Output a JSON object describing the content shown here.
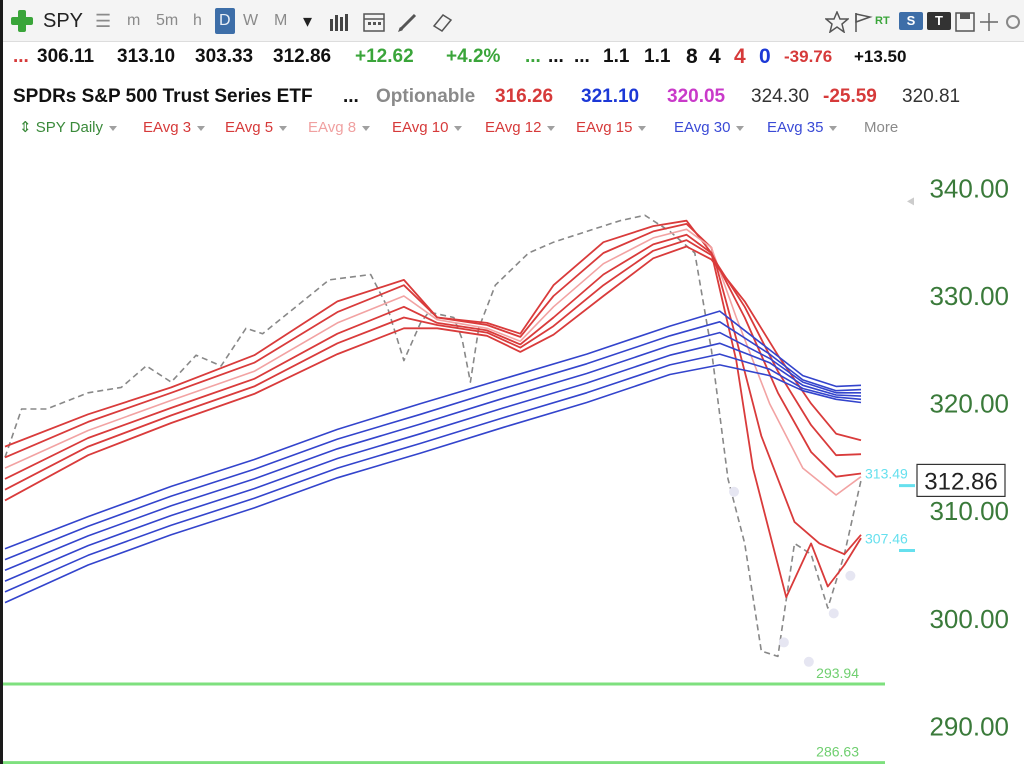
{
  "toolbar": {
    "symbol": "SPY",
    "list_glyph": "☰",
    "timeframes": [
      "m",
      "5m",
      "h",
      "D",
      "W",
      "M"
    ],
    "active_timeframe": "D",
    "dropdown_glyph": "▾",
    "right_rt": "RT",
    "right_s": "S",
    "right_t": "T"
  },
  "quote_line1": [
    {
      "text": "...",
      "color": "#d63a3a"
    },
    {
      "text": "306.11",
      "color": "#111111"
    },
    {
      "text": "313.10",
      "color": "#111111"
    },
    {
      "text": "303.33",
      "color": "#111111"
    },
    {
      "text": "312.86",
      "color": "#111111"
    },
    {
      "text": "+12.62",
      "color": "#3aa53a"
    },
    {
      "text": "+4.2%",
      "color": "#3aa53a"
    },
    {
      "text": "...",
      "color": "#3aa53a"
    },
    {
      "text": "...",
      "color": "#111111"
    },
    {
      "text": "...",
      "color": "#111111"
    },
    {
      "text": "1.1",
      "color": "#111111"
    },
    {
      "text": "1.1",
      "color": "#111111"
    },
    {
      "text": "8",
      "color": "#111111"
    },
    {
      "text": "4",
      "color": "#111111"
    },
    {
      "text": "4",
      "color": "#d63a3a"
    },
    {
      "text": "0",
      "color": "#1c38d6"
    },
    {
      "text": "-39.76",
      "color": "#d63a3a"
    },
    {
      "text": "+13.50",
      "color": "#111111"
    }
  ],
  "quote_line2": [
    {
      "text": "SPDRs S&P 500 Trust Series ETF",
      "color": "#111111"
    },
    {
      "text": "...",
      "color": "#111111"
    },
    {
      "text": "Optionable",
      "color": "#8a8a8a"
    },
    {
      "text": "316.26",
      "color": "#d63a3a"
    },
    {
      "text": "321.10",
      "color": "#1c38d6"
    },
    {
      "text": "320.05",
      "color": "#c93ac9"
    },
    {
      "text": "324.30",
      "color": "#333333"
    },
    {
      "text": "-25.59",
      "color": "#d63a3a"
    },
    {
      "text": "320.81",
      "color": "#333333"
    }
  ],
  "legend": [
    {
      "label": "SPY Daily",
      "color": "#3a8a3a"
    },
    {
      "label": "EAvg 3",
      "color": "#d63a3a"
    },
    {
      "label": "EAvg 5",
      "color": "#d63a3a"
    },
    {
      "label": "EAvg 8",
      "color": "#f0a0a0"
    },
    {
      "label": "EAvg 10",
      "color": "#d63a3a"
    },
    {
      "label": "EAvg 12",
      "color": "#d63a3a"
    },
    {
      "label": "EAvg 15",
      "color": "#d63a3a"
    },
    {
      "label": "EAvg 30",
      "color": "#3a4ad6"
    },
    {
      "label": "EAvg 35",
      "color": "#3a4ad6"
    },
    {
      "label": "More",
      "color": "#8a8a8a"
    }
  ],
  "chart_data": {
    "type": "line",
    "ylim": [
      286.5,
      344.5
    ],
    "y_ticks": [
      340,
      330,
      320,
      310,
      300,
      290
    ],
    "y_tick_labels": [
      "340.00",
      "330.00",
      "320.00",
      "310.00",
      "300.00",
      "290.00"
    ],
    "current_price": {
      "value": 312.86,
      "label": "312.86"
    },
    "level_lines": [
      {
        "value": 293.94,
        "label": "293.94",
        "color": "#7ee07e"
      },
      {
        "value": 286.63,
        "label": "286.63",
        "color": "#7ee07e"
      }
    ],
    "level_labels": [
      {
        "value": 313.49,
        "label": "313.49",
        "color": "#66e0ee"
      },
      {
        "value": 307.46,
        "label": "307.46",
        "color": "#66e0ee"
      }
    ],
    "bars": 59,
    "series": [
      {
        "id": "close",
        "color": "#888888",
        "dashed": true,
        "width": 1.6,
        "anchors": [
          [
            0,
            315
          ],
          [
            2,
            319.5
          ],
          [
            5,
            319.5
          ],
          [
            10,
            321
          ],
          [
            14,
            321.5
          ],
          [
            17,
            323.5
          ],
          [
            20,
            322
          ],
          [
            23,
            324.5
          ],
          [
            26,
            323.5
          ],
          [
            29,
            327
          ],
          [
            31,
            326.5
          ],
          [
            35,
            329
          ],
          [
            39,
            331.5
          ],
          [
            44,
            332
          ],
          [
            46,
            329
          ],
          [
            48,
            324
          ],
          [
            50,
            327.5
          ],
          [
            51,
            328.5
          ],
          [
            54,
            328
          ],
          [
            55,
            326
          ],
          [
            56,
            322
          ],
          [
            57,
            327
          ],
          [
            59,
            331
          ],
          [
            63,
            334
          ],
          [
            66,
            335
          ],
          [
            70,
            336
          ],
          [
            74,
            337
          ],
          [
            77,
            337.5
          ],
          [
            80,
            336
          ],
          [
            83,
            334
          ],
          [
            85,
            325
          ],
          [
            87,
            313
          ],
          [
            89,
            307
          ],
          [
            91,
            297
          ],
          [
            93,
            296.5
          ],
          [
            95,
            307
          ],
          [
            97,
            306
          ],
          [
            99,
            301
          ],
          [
            101,
            306
          ],
          [
            103,
            312.86
          ]
        ]
      },
      {
        "id": "eavg3",
        "color": "#d93b3b",
        "width": 1.8,
        "anchors": [
          [
            0,
            316
          ],
          [
            10,
            319
          ],
          [
            20,
            321.5
          ],
          [
            30,
            324.5
          ],
          [
            40,
            329.5
          ],
          [
            48,
            331.5
          ],
          [
            52,
            328
          ],
          [
            58,
            327.5
          ],
          [
            62,
            326.5
          ],
          [
            66,
            331
          ],
          [
            72,
            335
          ],
          [
            78,
            336.5
          ],
          [
            82,
            337
          ],
          [
            85,
            334
          ],
          [
            88,
            324
          ],
          [
            90,
            314
          ],
          [
            94,
            302
          ],
          [
            97,
            307
          ],
          [
            99,
            303
          ],
          [
            101,
            305
          ],
          [
            103,
            307.5
          ]
        ]
      },
      {
        "id": "eavg5",
        "color": "#d93b3b",
        "width": 1.8,
        "anchors": [
          [
            0,
            315
          ],
          [
            10,
            318.3
          ],
          [
            20,
            321
          ],
          [
            30,
            323.8
          ],
          [
            40,
            328.5
          ],
          [
            48,
            331
          ],
          [
            52,
            328
          ],
          [
            58,
            327.3
          ],
          [
            62,
            326.2
          ],
          [
            66,
            330
          ],
          [
            72,
            334
          ],
          [
            78,
            336
          ],
          [
            82,
            336.7
          ],
          [
            85,
            334.5
          ],
          [
            88,
            326
          ],
          [
            91,
            317
          ],
          [
            95,
            309
          ],
          [
            98,
            307
          ],
          [
            101,
            306
          ],
          [
            103,
            307.8
          ]
        ]
      },
      {
        "id": "eavg8",
        "color": "#f2a3a3",
        "width": 1.6,
        "anchors": [
          [
            0,
            314
          ],
          [
            10,
            317.5
          ],
          [
            20,
            320.3
          ],
          [
            30,
            323
          ],
          [
            40,
            327.5
          ],
          [
            48,
            330
          ],
          [
            52,
            327.8
          ],
          [
            58,
            327
          ],
          [
            62,
            325.8
          ],
          [
            66,
            329
          ],
          [
            72,
            333
          ],
          [
            78,
            335.4
          ],
          [
            82,
            336.2
          ],
          [
            85,
            334.5
          ],
          [
            88,
            328
          ],
          [
            92,
            320
          ],
          [
            96,
            314
          ],
          [
            100,
            311.5
          ],
          [
            103,
            313.2
          ]
        ]
      },
      {
        "id": "eavg10",
        "color": "#d93b3b",
        "width": 1.8,
        "anchors": [
          [
            0,
            313
          ],
          [
            10,
            316.8
          ],
          [
            20,
            319.6
          ],
          [
            30,
            322.3
          ],
          [
            40,
            326.5
          ],
          [
            48,
            329
          ],
          [
            52,
            327.5
          ],
          [
            58,
            326.8
          ],
          [
            62,
            325.5
          ],
          [
            66,
            328
          ],
          [
            72,
            332
          ],
          [
            78,
            334.8
          ],
          [
            82,
            335.7
          ],
          [
            85,
            334
          ],
          [
            89,
            328
          ],
          [
            93,
            321
          ],
          [
            97,
            315.5
          ],
          [
            100,
            313.2
          ],
          [
            103,
            313.5
          ]
        ]
      },
      {
        "id": "eavg12",
        "color": "#d93b3b",
        "width": 1.8,
        "anchors": [
          [
            0,
            312
          ],
          [
            10,
            316
          ],
          [
            20,
            318.9
          ],
          [
            30,
            321.6
          ],
          [
            40,
            325.6
          ],
          [
            48,
            328
          ],
          [
            52,
            327.3
          ],
          [
            58,
            326.6
          ],
          [
            62,
            325.2
          ],
          [
            66,
            327.2
          ],
          [
            72,
            331
          ],
          [
            78,
            334.2
          ],
          [
            82,
            335.2
          ],
          [
            85,
            333.8
          ],
          [
            89,
            329
          ],
          [
            93,
            323
          ],
          [
            97,
            318
          ],
          [
            100,
            315.2
          ],
          [
            103,
            315.3
          ]
        ]
      },
      {
        "id": "eavg15",
        "color": "#d93b3b",
        "width": 1.8,
        "anchors": [
          [
            0,
            311
          ],
          [
            10,
            315.2
          ],
          [
            20,
            318.2
          ],
          [
            30,
            320.9
          ],
          [
            40,
            324.6
          ],
          [
            48,
            327
          ],
          [
            52,
            327
          ],
          [
            58,
            326.3
          ],
          [
            62,
            324.8
          ],
          [
            66,
            326.4
          ],
          [
            72,
            330
          ],
          [
            78,
            333.5
          ],
          [
            82,
            334.6
          ],
          [
            85,
            333.4
          ],
          [
            89,
            329.5
          ],
          [
            93,
            324.5
          ],
          [
            97,
            320
          ],
          [
            100,
            317.2
          ],
          [
            103,
            316.6
          ]
        ]
      },
      {
        "id": "eavg30_a",
        "color": "#3344cc",
        "width": 1.6,
        "anchors": [
          [
            0,
            306.5
          ],
          [
            10,
            309.5
          ],
          [
            20,
            312.3
          ],
          [
            30,
            314.8
          ],
          [
            40,
            317.6
          ],
          [
            50,
            320
          ],
          [
            60,
            322.3
          ],
          [
            70,
            324.6
          ],
          [
            80,
            327.2
          ],
          [
            86,
            328.6
          ],
          [
            92,
            325
          ],
          [
            96,
            322.6
          ],
          [
            100,
            321.6
          ],
          [
            103,
            321.7
          ]
        ]
      },
      {
        "id": "eavg30_b",
        "color": "#3344cc",
        "width": 1.6,
        "anchors": [
          [
            0,
            305.5
          ],
          [
            10,
            308.6
          ],
          [
            20,
            311.4
          ],
          [
            30,
            313.9
          ],
          [
            40,
            316.7
          ],
          [
            50,
            319
          ],
          [
            60,
            321.4
          ],
          [
            70,
            323.7
          ],
          [
            80,
            326.3
          ],
          [
            86,
            327.6
          ],
          [
            92,
            324.6
          ],
          [
            96,
            322.2
          ],
          [
            100,
            321.2
          ],
          [
            103,
            321.3
          ]
        ]
      },
      {
        "id": "eavg30_c",
        "color": "#3344cc",
        "width": 1.6,
        "anchors": [
          [
            0,
            304.5
          ],
          [
            10,
            307.7
          ],
          [
            20,
            310.5
          ],
          [
            30,
            313
          ],
          [
            40,
            315.8
          ],
          [
            50,
            318.1
          ],
          [
            60,
            320.5
          ],
          [
            70,
            322.8
          ],
          [
            80,
            325.4
          ],
          [
            86,
            326.6
          ],
          [
            92,
            324.2
          ],
          [
            96,
            322
          ],
          [
            100,
            321
          ],
          [
            103,
            321
          ]
        ]
      },
      {
        "id": "eavg30_d",
        "color": "#3344cc",
        "width": 1.6,
        "anchors": [
          [
            0,
            303.5
          ],
          [
            10,
            306.8
          ],
          [
            20,
            309.6
          ],
          [
            30,
            312.1
          ],
          [
            40,
            314.9
          ],
          [
            50,
            317.2
          ],
          [
            60,
            319.6
          ],
          [
            70,
            321.9
          ],
          [
            80,
            324.5
          ],
          [
            86,
            325.6
          ],
          [
            92,
            323.8
          ],
          [
            96,
            321.7
          ],
          [
            100,
            320.8
          ],
          [
            103,
            320.7
          ]
        ]
      },
      {
        "id": "eavg30_e",
        "color": "#3344cc",
        "width": 1.6,
        "anchors": [
          [
            0,
            302.5
          ],
          [
            10,
            305.9
          ],
          [
            20,
            308.7
          ],
          [
            30,
            311.2
          ],
          [
            40,
            314
          ],
          [
            50,
            316.3
          ],
          [
            60,
            318.7
          ],
          [
            70,
            321
          ],
          [
            80,
            323.6
          ],
          [
            86,
            324.6
          ],
          [
            92,
            323.2
          ],
          [
            96,
            321.4
          ],
          [
            100,
            320.6
          ],
          [
            103,
            320.4
          ]
        ]
      },
      {
        "id": "eavg35",
        "color": "#3344cc",
        "width": 1.6,
        "anchors": [
          [
            0,
            301.5
          ],
          [
            10,
            305
          ],
          [
            20,
            307.8
          ],
          [
            30,
            310.3
          ],
          [
            40,
            313.1
          ],
          [
            50,
            315.4
          ],
          [
            60,
            317.8
          ],
          [
            70,
            320.1
          ],
          [
            80,
            322.7
          ],
          [
            86,
            323.6
          ],
          [
            92,
            322.6
          ],
          [
            96,
            321.2
          ],
          [
            100,
            320.4
          ],
          [
            103,
            320.1
          ]
        ]
      }
    ]
  }
}
